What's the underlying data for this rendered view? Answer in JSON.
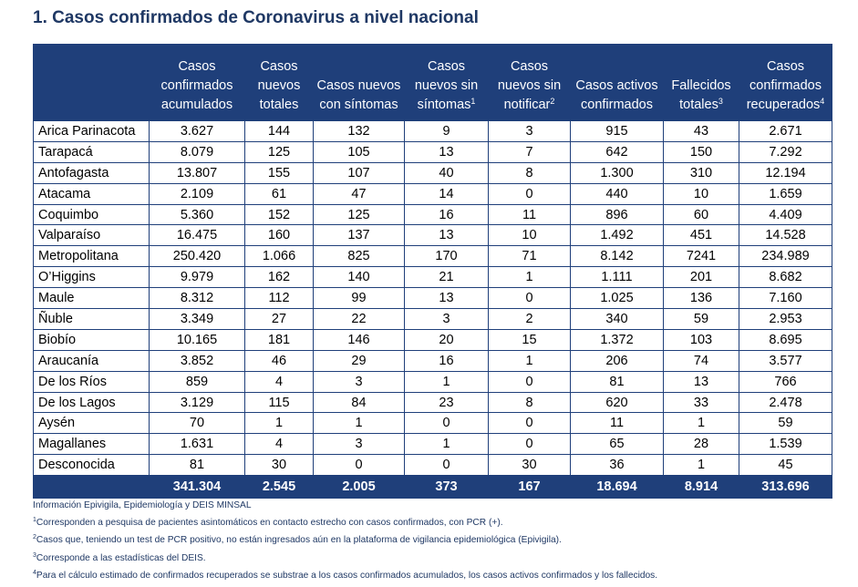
{
  "title": "1. Casos confirmados de Coronavirus a nivel nacional",
  "columns": [
    {
      "label": "",
      "sup": ""
    },
    {
      "label": "Casos confirmados acumulados",
      "sup": ""
    },
    {
      "label": "Casos nuevos totales",
      "sup": ""
    },
    {
      "label": "Casos nuevos con síntomas",
      "sup": ""
    },
    {
      "label": "Casos nuevos sin síntomas",
      "sup": "1"
    },
    {
      "label": "Casos nuevos sin notificar",
      "sup": "2"
    },
    {
      "label": "Casos activos confirmados",
      "sup": ""
    },
    {
      "label": "Fallecidos totales",
      "sup": "3"
    },
    {
      "label": "Casos confirmados recuperados",
      "sup": "4"
    }
  ],
  "rows": [
    [
      "Arica Parinacota",
      "3.627",
      "144",
      "132",
      "9",
      "3",
      "915",
      "43",
      "2.671"
    ],
    [
      "Tarapacá",
      "8.079",
      "125",
      "105",
      "13",
      "7",
      "642",
      "150",
      "7.292"
    ],
    [
      "Antofagasta",
      "13.807",
      "155",
      "107",
      "40",
      "8",
      "1.300",
      "310",
      "12.194"
    ],
    [
      "Atacama",
      "2.109",
      "61",
      "47",
      "14",
      "0",
      "440",
      "10",
      "1.659"
    ],
    [
      "Coquimbo",
      "5.360",
      "152",
      "125",
      "16",
      "11",
      "896",
      "60",
      "4.409"
    ],
    [
      "Valparaíso",
      "16.475",
      "160",
      "137",
      "13",
      "10",
      "1.492",
      "451",
      "14.528"
    ],
    [
      "Metropolitana",
      "250.420",
      "1.066",
      "825",
      "170",
      "71",
      "8.142",
      "7241",
      "234.989"
    ],
    [
      "O’Higgins",
      "9.979",
      "162",
      "140",
      "21",
      "1",
      "1.111",
      "201",
      "8.682"
    ],
    [
      "Maule",
      "8.312",
      "112",
      "99",
      "13",
      "0",
      "1.025",
      "136",
      "7.160"
    ],
    [
      "Ñuble",
      "3.349",
      "27",
      "22",
      "3",
      "2",
      "340",
      "59",
      "2.953"
    ],
    [
      "Biobío",
      "10.165",
      "181",
      "146",
      "20",
      "15",
      "1.372",
      "103",
      "8.695"
    ],
    [
      "Araucanía",
      "3.852",
      "46",
      "29",
      "16",
      "1",
      "206",
      "74",
      "3.577"
    ],
    [
      "De los Ríos",
      "859",
      "4",
      "3",
      "1",
      "0",
      "81",
      "13",
      "766"
    ],
    [
      "De los Lagos",
      "3.129",
      "115",
      "84",
      "23",
      "8",
      "620",
      "33",
      "2.478"
    ],
    [
      "Aysén",
      "70",
      "1",
      "1",
      "0",
      "0",
      "11",
      "1",
      "59"
    ],
    [
      "Magallanes",
      "1.631",
      "4",
      "3",
      "1",
      "0",
      "65",
      "28",
      "1.539"
    ],
    [
      "Desconocida",
      "81",
      "30",
      "0",
      "0",
      "30",
      "36",
      "1",
      "45"
    ]
  ],
  "totals": [
    "",
    "341.304",
    "2.545",
    "2.005",
    "373",
    "167",
    "18.694",
    "8.914",
    "313.696"
  ],
  "notes": [
    {
      "sup": "",
      "text": "Información Epivigila, Epidemiología y DEIS MINSAL"
    },
    {
      "sup": "1",
      "text": "Corresponden a pesquisa de pacientes asintomáticos en contacto estrecho con casos confirmados, con PCR (+)."
    },
    {
      "sup": "2",
      "text": "Casos que, teniendo un test de PCR positivo, no están ingresados aún en la plataforma de vigilancia epidemiológica (Epivigila)."
    },
    {
      "sup": "3",
      "text": "Corresponde a las estadísticas del DEIS."
    },
    {
      "sup": "4",
      "text": "Para el cálculo estimado de confirmados recuperados se substrae a los casos confirmados acumulados, los casos activos confirmados y los fallecidos."
    }
  ],
  "colors": {
    "header_bg": "#1f3f7a",
    "title": "#1f3864"
  }
}
